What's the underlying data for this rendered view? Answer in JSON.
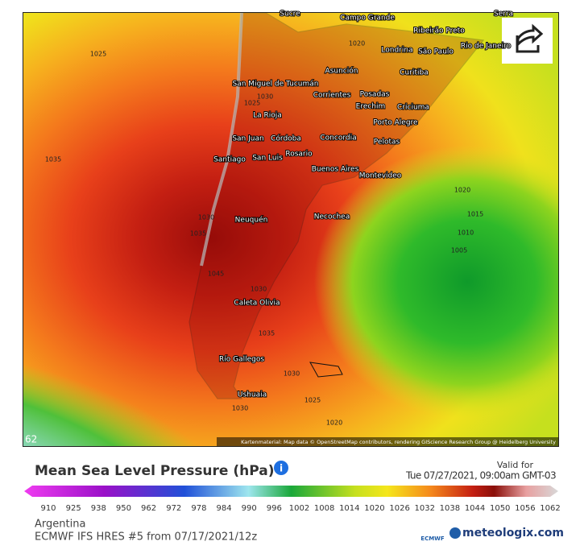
{
  "map": {
    "cities": [
      "Sucre",
      "Campo Grande",
      "Ribeirão Preto",
      "Serra",
      "Londrina",
      "São Paulo",
      "Rio de Janeiro",
      "Curitiba",
      "Asunción",
      "San Miguel de Tucumán",
      "Corrientes",
      "Posadas",
      "Erechim",
      "Criciuma",
      "La Rioja",
      "Porto Alegre",
      "San Juan",
      "Córdoba",
      "Concordia",
      "Pelotas",
      "Rosario",
      "San Luis",
      "Santiago",
      "Buenos Aires",
      "Montevideo",
      "Neuquén",
      "Necochea",
      "Caleta Olivia",
      "Río Gallegos",
      "Ushuaia"
    ],
    "isobars": [
      1025,
      1020,
      1025,
      1030,
      1035,
      1030,
      1035,
      1045,
      1030,
      1035,
      1030,
      1025,
      1020,
      1020,
      1015,
      1010,
      1005,
      1030
    ],
    "frame": "62",
    "attribution": "Kartenmaterial: Map data © OpenStreetMap contributors, rendering GIScience Research Group @ Heidelberg University"
  },
  "legend": {
    "title": "Mean Sea Level Pressure (hPa)",
    "valid_label": "Valid for",
    "valid_time": "Tue 07/27/2021, 09:00am GMT-03",
    "ticks": [
      910,
      925,
      938,
      950,
      962,
      972,
      978,
      984,
      990,
      996,
      1002,
      1008,
      1014,
      1020,
      1026,
      1032,
      1038,
      1044,
      1050,
      1056,
      1062
    ]
  },
  "footer": {
    "region": "Argentina",
    "model": "ECMWF IFS HRES #5 from 07/17/2021/12z",
    "ecmwf": "ECMWF",
    "brand": "meteologix.com"
  }
}
